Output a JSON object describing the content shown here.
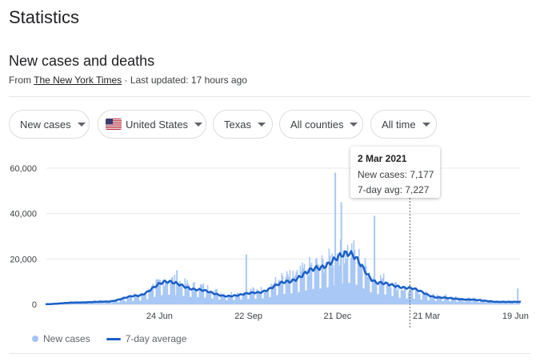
{
  "page": {
    "title": "Statistics"
  },
  "section": {
    "title": "New cases and deaths",
    "source_prefix": "From ",
    "source_name": "The New York Times",
    "updated": " · Last updated: 17 hours ago"
  },
  "filters": [
    {
      "label": "New cases"
    },
    {
      "label": "United States",
      "flag": "us-flag-icon"
    },
    {
      "label": "Texas"
    },
    {
      "label": "All counties"
    },
    {
      "label": "All time"
    }
  ],
  "tooltip": {
    "date": "2 Mar 2021",
    "new_cases": "New cases: 7,177",
    "avg": "7-day avg: 7,227"
  },
  "legend": {
    "bars": "New cases",
    "line": "7-day average"
  },
  "colors": {
    "bar": "#a9c8f5",
    "line": "#1a5fc7",
    "grid": "#e8eaed",
    "axis": "#dadce0"
  },
  "chart_data": {
    "type": "bar",
    "ylim": [
      0,
      60000
    ],
    "yticks": [
      "0",
      "20,000",
      "40,000",
      "60,000"
    ],
    "xticks": [
      "24 Jun",
      "22 Sep",
      "21 Dec",
      "21 Mar",
      "19 Jun"
    ],
    "series": [
      {
        "kind": "bar",
        "monthly_points": [
          [
            "Mar 2020",
            200
          ],
          [
            "Apr 2020",
            900
          ],
          [
            "May 2020",
            1100
          ],
          [
            "Jun 2020",
            3500
          ],
          [
            "Jul 2020",
            9500
          ],
          [
            "Aug 2020",
            7000
          ],
          [
            "Sep 2020",
            4000
          ],
          [
            "Oct 2020",
            5500
          ],
          [
            "Nov 2020",
            10500
          ],
          [
            "Dec 2020",
            15500
          ],
          [
            "Jan 2021",
            21000
          ],
          [
            "Feb 2021",
            10000
          ],
          [
            "Mar 2021",
            5500
          ],
          [
            "Apr 2021",
            3200
          ],
          [
            "May 2021",
            2200
          ],
          [
            "Jun 2021",
            1200
          ]
        ],
        "spikes": [
          [
            "Jul 2020",
            15000
          ],
          [
            "Sep 2020",
            22000
          ],
          [
            "Dec 2020",
            58000
          ],
          [
            "Dec 2020",
            45000
          ],
          [
            "Jan 2021",
            39000
          ],
          [
            "Jun 2021",
            7000
          ]
        ]
      },
      {
        "kind": "line",
        "monthly_points": [
          [
            "Mar 2020",
            100
          ],
          [
            "Apr 2020",
            800
          ],
          [
            "May 2020",
            1200
          ],
          [
            "Jun 2020",
            3800
          ],
          [
            "Jul 2020",
            10000
          ],
          [
            "Aug 2020",
            6500
          ],
          [
            "Sep 2020",
            3600
          ],
          [
            "Oct 2020",
            5200
          ],
          [
            "Nov 2020",
            10000
          ],
          [
            "Dec 2020",
            16000
          ],
          [
            "Jan 2021",
            22500
          ],
          [
            "Feb 2021",
            9500
          ],
          [
            "Mar 2021",
            7227
          ],
          [
            "Apr 2021",
            3000
          ],
          [
            "May 2021",
            2100
          ],
          [
            "Jun 2021",
            1100
          ]
        ]
      }
    ],
    "marker": {
      "date": "2 Mar 2021"
    }
  }
}
